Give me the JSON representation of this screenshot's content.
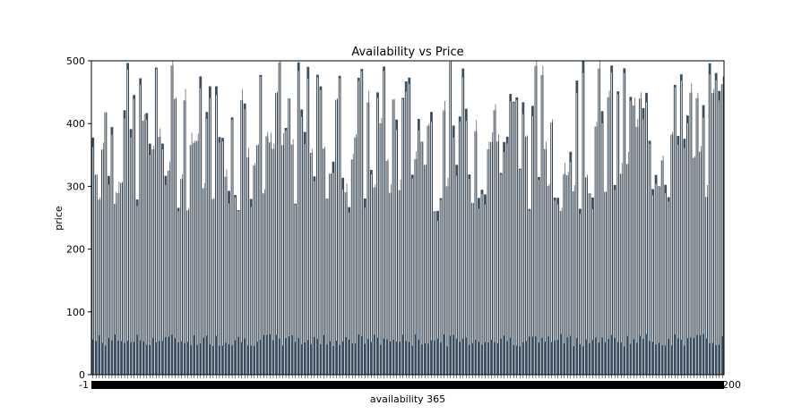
{
  "chart_data": {
    "type": "bar",
    "title": "Availability vs Price",
    "xlabel": "availability 365",
    "ylabel": "price",
    "ylim": [
      0,
      500
    ],
    "yticks": [
      0,
      100,
      200,
      300,
      400,
      500
    ],
    "x_range": [
      -1,
      200
    ],
    "x_tick_labels_visible": [
      "-1",
      "200"
    ],
    "grid": false,
    "bar_color": "#3b4f61",
    "edge_color": "#ffffff",
    "bar_count_visible": 200,
    "note_rendering": "Dense barplot of mean price per availability value with black error bars; individual x tick labels overlap into a solid band."
  }
}
